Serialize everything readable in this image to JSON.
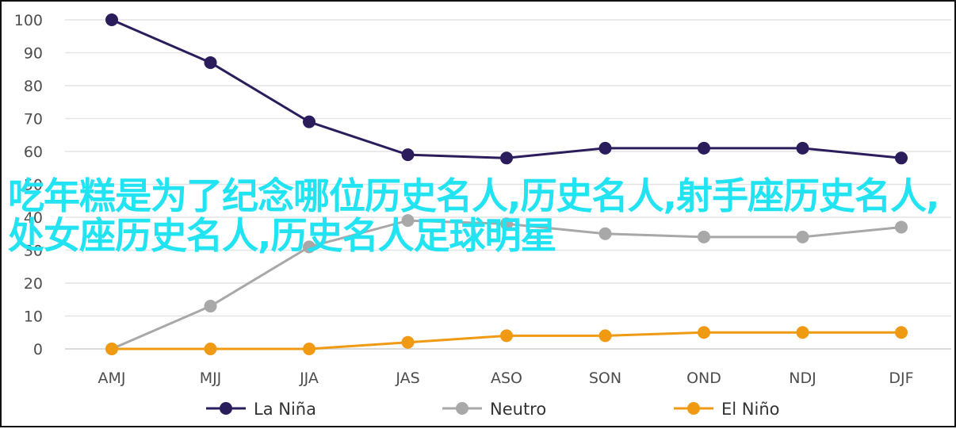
{
  "chart_data": {
    "type": "line",
    "categories": [
      "AMJ",
      "MJJ",
      "JJA",
      "JAS",
      "ASO",
      "SON",
      "OND",
      "NDJ",
      "DJF"
    ],
    "ylim": [
      0,
      100
    ],
    "yticks": [
      "0",
      "10",
      "20",
      "30",
      "40",
      "50",
      "60",
      "70",
      "80",
      "90",
      "100"
    ],
    "grid": true,
    "legend_position": "bottom",
    "series": [
      {
        "name": "La Niña",
        "color": "#2b1d5c",
        "values": [
          100,
          87,
          69,
          59,
          58,
          61,
          61,
          61,
          58
        ]
      },
      {
        "name": "Neutro",
        "color": "#a8a8a8",
        "values": [
          0,
          13,
          31,
          39,
          38,
          35,
          34,
          34,
          37
        ]
      },
      {
        "name": "El Niño",
        "color": "#f09a13",
        "values": [
          0,
          0,
          0,
          2,
          4,
          4,
          5,
          5,
          5
        ]
      }
    ]
  },
  "overlay_text": "吃年糕是为了纪念哪位历史名人,历史名人,射手座历史名人,处女座历史名人,历史名人足球明星"
}
